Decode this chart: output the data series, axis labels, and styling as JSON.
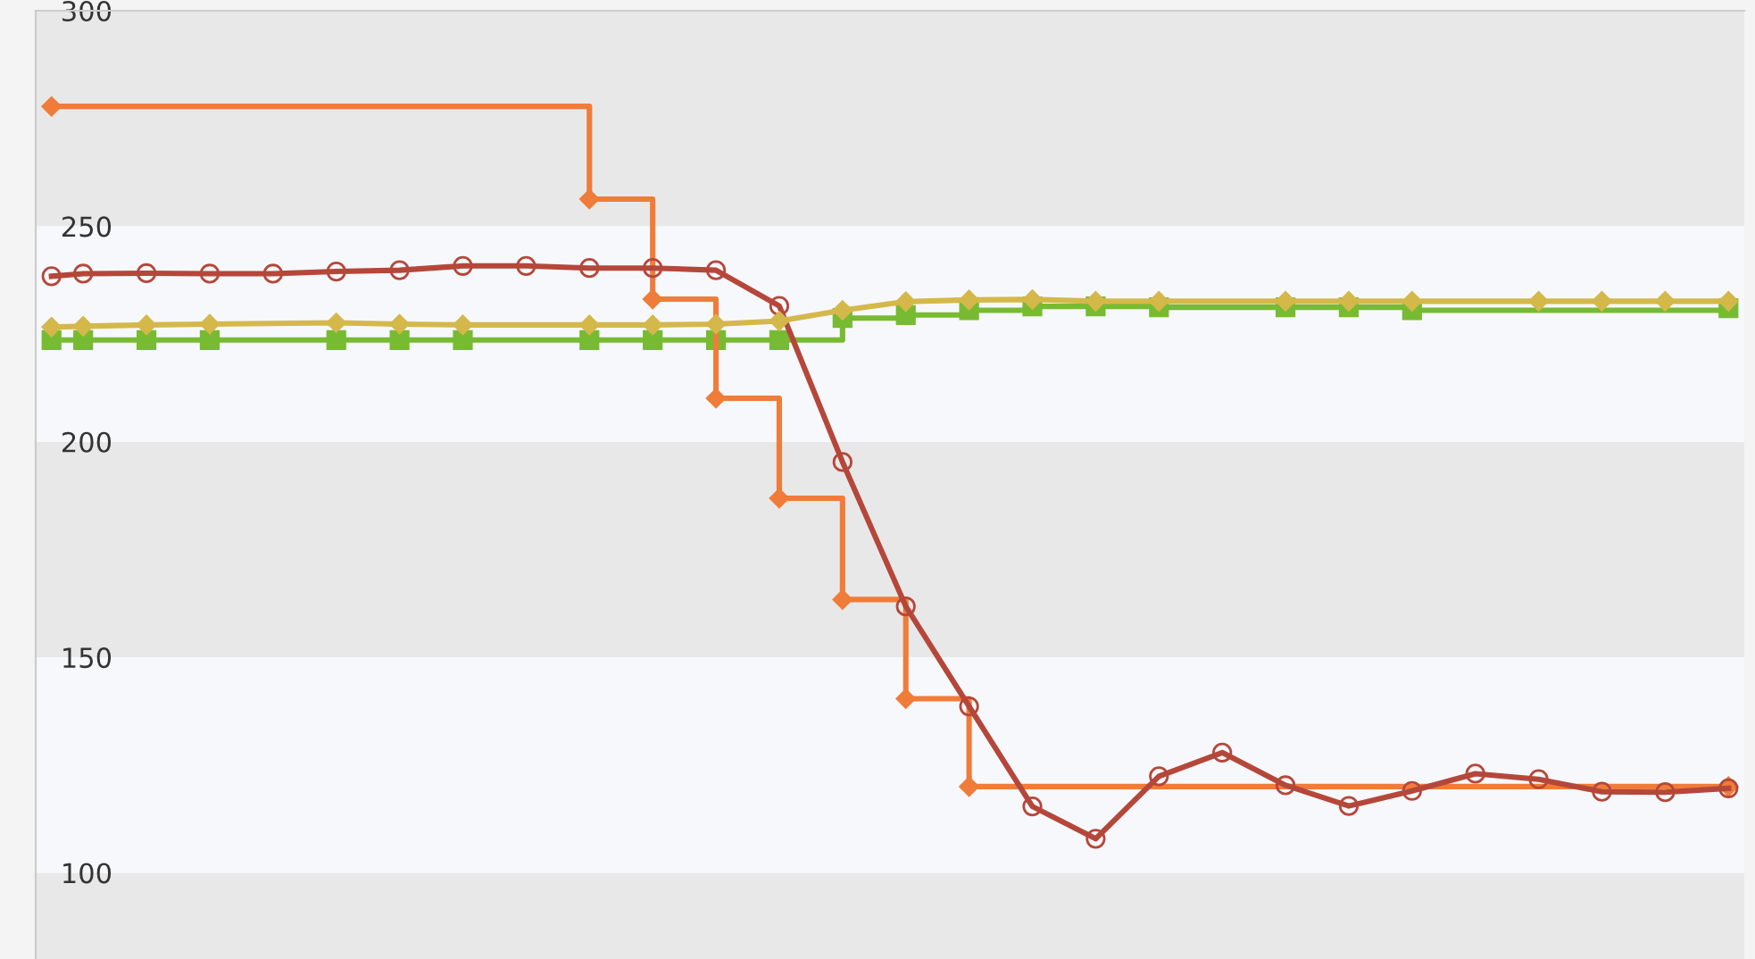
{
  "chart_data": {
    "type": "line",
    "categories": [
      null,
      null,
      null,
      null,
      null,
      null,
      null,
      null,
      null,
      null,
      null,
      null,
      null,
      null,
      null,
      null,
      null,
      null,
      null,
      null,
      null,
      null,
      null,
      null,
      null,
      null,
      null,
      null,
      null,
      null,
      null,
      null,
      null,
      null,
      null,
      null,
      null,
      null,
      null,
      null,
      null,
      null,
      null,
      null,
      null,
      null,
      null,
      null,
      null,
      null,
      null,
      null,
      null,
      null
    ],
    "ylim": [
      80,
      300
    ],
    "yticks": [
      100,
      150,
      200,
      250,
      300
    ],
    "tick_labels": "y",
    "bands": [
      {
        "axis": "y",
        "from": 80,
        "to": 100,
        "color": "#e8e8e8"
      },
      {
        "axis": "y",
        "from": 100,
        "to": 150,
        "color": "#f7f8fc"
      },
      {
        "axis": "y",
        "from": 150,
        "to": 200,
        "color": "#e8e8e8"
      },
      {
        "axis": "y",
        "from": 200,
        "to": 250,
        "color": "#f7f8fc"
      },
      {
        "axis": "y",
        "from": 250,
        "to": 300,
        "color": "#e8e8e8"
      }
    ],
    "series": [
      {
        "color": "#d4b84a",
        "marker": "diamond",
        "values": [
          226.6,
          226.8,
          null,
          227.1,
          null,
          227.3,
          null,
          null,
          null,
          227.6,
          null,
          227.3,
          null,
          227.1,
          null,
          null,
          null,
          227.1,
          null,
          227.1,
          null,
          227.3,
          null,
          228,
          null,
          230.5,
          null,
          232.5,
          null,
          232.9,
          null,
          233,
          null,
          232.6,
          null,
          232.6,
          null,
          null,
          null,
          232.6,
          null,
          232.6,
          null,
          232.6,
          null,
          null,
          null,
          232.6,
          null,
          232.6,
          null,
          232.6,
          null,
          232.6
        ]
      },
      {
        "type": "step",
        "color": "#77bb33",
        "marker": "square",
        "values": [
          223.6,
          223.6,
          null,
          223.6,
          null,
          223.6,
          null,
          null,
          null,
          223.6,
          null,
          223.6,
          null,
          223.6,
          null,
          null,
          null,
          223.6,
          null,
          223.6,
          null,
          223.6,
          null,
          223.6,
          null,
          228.7,
          null,
          229.4,
          null,
          230.5,
          null,
          231.4,
          null,
          231.4,
          null,
          231.2,
          null,
          null,
          null,
          231.2,
          null,
          231.2,
          null,
          230.5,
          null,
          null,
          null,
          null,
          null,
          null,
          null,
          null,
          null,
          231
        ]
      },
      {
        "type": "step",
        "color": "#f07c3a",
        "marker": "diamond",
        "values": [
          277.8,
          null,
          null,
          null,
          null,
          null,
          null,
          null,
          null,
          null,
          null,
          null,
          null,
          null,
          null,
          null,
          null,
          256.3,
          null,
          233.1,
          null,
          210.1,
          null,
          186.9,
          null,
          163.4,
          null,
          140.4,
          null,
          120,
          null,
          null,
          null,
          null,
          null,
          null,
          null,
          null,
          null,
          null,
          null,
          null,
          null,
          null,
          null,
          null,
          null,
          null,
          null,
          null,
          null,
          null,
          null,
          120
        ]
      },
      {
        "color": "#b5473a",
        "marker": "circle",
        "values": [
          238.4,
          239,
          null,
          239.1,
          null,
          239,
          null,
          239,
          null,
          239.5,
          null,
          239.8,
          null,
          240.8,
          null,
          240.8,
          null,
          240.3,
          null,
          240.3,
          null,
          239.8,
          null,
          231.5,
          null,
          195.3,
          null,
          161.8,
          null,
          138.6,
          null,
          115.4,
          null,
          107.9,
          null,
          122.4,
          null,
          127.9,
          null,
          120.3,
          null,
          115.5,
          null,
          119,
          null,
          123,
          null,
          121.7,
          null,
          118.8,
          null,
          118.7,
          null,
          119.6
        ]
      }
    ]
  }
}
